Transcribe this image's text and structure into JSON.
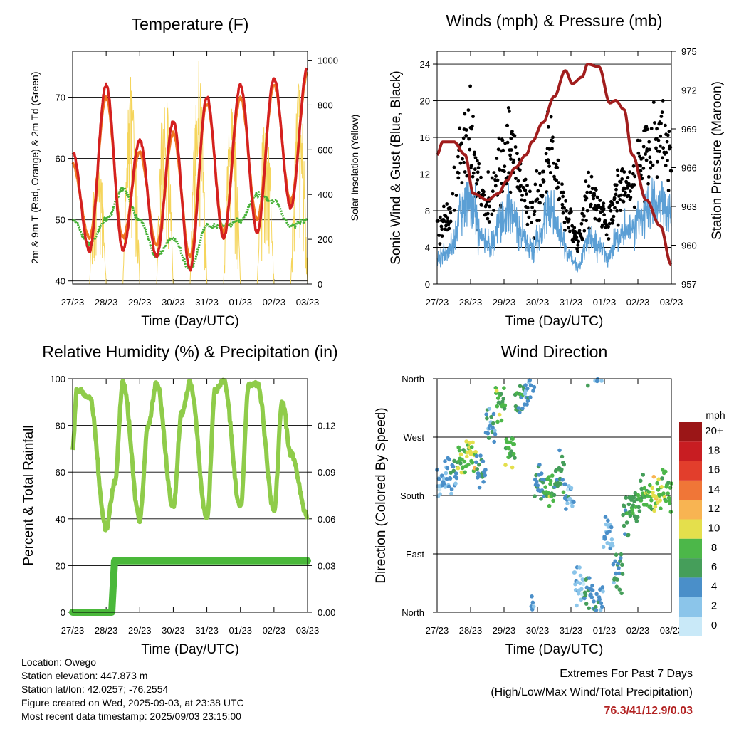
{
  "x_ticks": [
    "27/23",
    "28/23",
    "29/23",
    "30/23",
    "31/23",
    "01/23",
    "02/23",
    "03/23"
  ],
  "chart_data": [
    {
      "type": "line",
      "title": "Temperature (F)",
      "xlabel": "Time (Day/UTC)",
      "ylabel": "2m & 9m T (Red, Orange) & 2m Td (Green)",
      "ylabel_right": "Solar Insolation (Yellow)",
      "ylim": [
        39.5,
        77.5
      ],
      "ylim_right": [
        0,
        1040
      ],
      "yticks": [
        40,
        50,
        60,
        70
      ],
      "yticks_right": [
        0,
        200,
        400,
        600,
        800,
        1000
      ],
      "x": [
        0,
        12,
        24,
        36,
        48,
        60,
        72,
        84,
        96,
        108,
        120,
        132,
        144,
        156,
        168
      ],
      "series": [
        {
          "name": "2m T",
          "color": "#d42020",
          "values": [
            61,
            45,
            72,
            45,
            63,
            44,
            66,
            42,
            70,
            47,
            72,
            48,
            73,
            52,
            75
          ]
        },
        {
          "name": "9m T",
          "color": "#ee7722",
          "values": [
            59,
            47,
            70,
            47,
            61,
            46,
            64,
            44,
            69,
            48,
            70,
            50,
            72,
            53,
            74
          ]
        },
        {
          "name": "2m Td",
          "color": "#44b035",
          "values": [
            50,
            46,
            50,
            55,
            50,
            44,
            47,
            42,
            49,
            49,
            50,
            54,
            53,
            49,
            50
          ]
        },
        {
          "name": "Solar Insolation",
          "color": "#f5d55c",
          "axis": "right",
          "peaks": [
            650,
            960,
            920,
            1000,
            880,
            800,
            920,
            850
          ]
        }
      ]
    },
    {
      "type": "scatter",
      "title": "Winds (mph) & Pressure (mb)",
      "xlabel": "Time (Day/UTC)",
      "ylabel": "Sonic Wind & Gust (Blue, Black)",
      "ylabel_right": "Station Pressure (Maroon)",
      "ylim": [
        0,
        25.4
      ],
      "ylim_right": [
        957,
        975
      ],
      "yticks": [
        0,
        4,
        8,
        12,
        16,
        20,
        24
      ],
      "yticks_right": [
        957,
        960,
        963,
        966,
        969,
        972,
        975
      ],
      "pressure_x": [
        0,
        4,
        12,
        20,
        26,
        36,
        44,
        50,
        56,
        64,
        68,
        76,
        84,
        92,
        97,
        104,
        108,
        116,
        124,
        128,
        134,
        140,
        150,
        160,
        168
      ],
      "pressure": [
        967,
        968,
        968,
        967,
        964,
        963.5,
        964,
        965,
        966,
        967,
        968,
        969.5,
        971.5,
        973.5,
        972.5,
        973,
        974,
        973.8,
        971,
        971.2,
        970.5,
        967,
        963.5,
        961.5,
        958.5
      ],
      "speed_hourly_mean": [
        3,
        4,
        8,
        9,
        5,
        4,
        7,
        8,
        6,
        4,
        5,
        8,
        6,
        3,
        2,
        5,
        4,
        3,
        5,
        6,
        7,
        8,
        9,
        8
      ],
      "gust_factor": 1.6
    },
    {
      "type": "line",
      "title": "Relative Humidity (%) & Precipitation (in)",
      "xlabel": "Time (Day/UTC)",
      "ylabel": "Percent & Total Rainfall",
      "ylim": [
        0,
        100
      ],
      "ylim_right": [
        0,
        0.15
      ],
      "yticks": [
        0,
        20,
        40,
        60,
        80,
        100
      ],
      "yticks_right": [
        "0.00",
        "0.03",
        "0.06",
        "0.09",
        "0.12"
      ],
      "x": [
        0,
        3,
        12,
        24,
        30,
        36,
        48,
        54,
        60,
        72,
        78,
        84,
        96,
        102,
        108,
        120,
        126,
        132,
        144,
        150,
        156,
        168
      ],
      "series": [
        {
          "name": "Relative Humidity",
          "color": "#8fcc4a",
          "values": [
            70,
            95,
            92,
            36,
            55,
            98,
            40,
            80,
            98,
            45,
            85,
            98,
            40,
            95,
            99,
            45,
            97,
            98,
            44,
            90,
            68,
            41
          ]
        },
        {
          "name": "Total Precipitation",
          "color": "#4ab83a",
          "steps": [
            [
              0,
              0
            ],
            [
              28,
              0
            ],
            [
              30,
              0.033
            ],
            [
              168,
              0.033
            ]
          ]
        }
      ]
    },
    {
      "type": "scatter",
      "title": "Wind Direction",
      "xlabel": "Time (Day/UTC)",
      "ylabel": "Direction (Colored By Speed)",
      "yticks": [
        "North",
        "East",
        "South",
        "West",
        "North"
      ],
      "ylim": [
        0,
        360
      ],
      "direction_hourly_mean": [
        200,
        210,
        230,
        250,
        220,
        290,
        320,
        250,
        330,
        350,
        200,
        190,
        210,
        180,
        40,
        30,
        10,
        120,
        60,
        150,
        170,
        180,
        185,
        190
      ],
      "colorbar": {
        "title": "mph",
        "labels": [
          "0",
          "2",
          "4",
          "6",
          "8",
          "10",
          "12",
          "14",
          "16",
          "18",
          "20+"
        ],
        "colors": [
          "#c9e9f8",
          "#8bc5ea",
          "#4a8fc9",
          "#459e5a",
          "#4cb749",
          "#e4df4c",
          "#f8b452",
          "#f07637",
          "#e23e2c",
          "#c81d22",
          "#9b1617"
        ]
      }
    }
  ],
  "footer": {
    "location": "Location: Owego",
    "elevation": "Station elevation: 447.873 m",
    "latlon": "Station lat/lon: 42.0257; -76.2554",
    "created": "Figure created on Wed, 2025-09-03, at 23:38 UTC",
    "recent": "Most recent data timestamp: 2025/09/03 23:15:00"
  },
  "extremes": {
    "line1": "Extremes For Past 7 Days",
    "line2": "(High/Low/Max Wind/Total Precipitation)",
    "values": "76.3/41/12.9/0.03"
  }
}
